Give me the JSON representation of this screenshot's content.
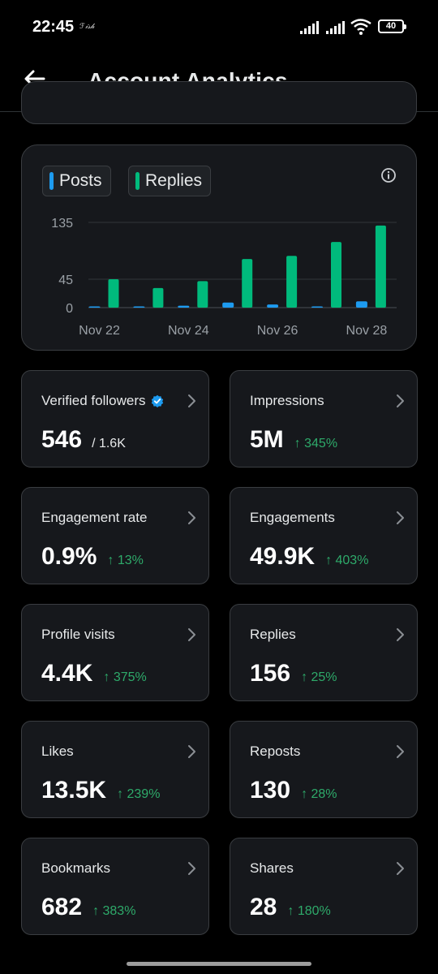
{
  "status_bar": {
    "time": "22:45",
    "carrier_label": "ℱ𝒾𝓈𝒽",
    "battery": "40",
    "icons": [
      "signal-icon",
      "signal-icon",
      "wifi-icon",
      "battery-icon"
    ]
  },
  "header": {
    "title": "Account Analytics",
    "back_icon": "arrow-left-icon"
  },
  "chart": {
    "legend": [
      {
        "label": "Posts",
        "color": "#1d9bf0"
      },
      {
        "label": "Replies",
        "color": "#00ba7c"
      }
    ],
    "info_icon": "info-icon"
  },
  "chart_data": {
    "type": "bar",
    "categories": [
      "Nov 22",
      "Nov 23",
      "Nov 24",
      "Nov 25",
      "Nov 26",
      "Nov 27",
      "Nov 28"
    ],
    "x_tick_labels": [
      "Nov 22",
      "Nov 24",
      "Nov 26",
      "Nov 28"
    ],
    "y_ticks": [
      0,
      45,
      135
    ],
    "ylim": [
      0,
      135
    ],
    "grid": true,
    "series": [
      {
        "name": "Posts",
        "color": "#1d9bf0",
        "values": [
          1,
          0,
          3,
          8,
          5,
          2,
          10
        ]
      },
      {
        "name": "Replies",
        "color": "#00ba7c",
        "values": [
          45,
          31,
          42,
          77,
          82,
          104,
          130
        ]
      }
    ]
  },
  "tiles": [
    {
      "label": "Verified followers",
      "value": "546",
      "sub": "/ 1.6K",
      "change": "",
      "verified": true
    },
    {
      "label": "Impressions",
      "value": "5M",
      "sub": "",
      "change": "↑ 345%"
    },
    {
      "label": "Engagement rate",
      "value": "0.9%",
      "sub": "",
      "change": "↑ 13%"
    },
    {
      "label": "Engagements",
      "value": "49.9K",
      "sub": "",
      "change": "↑ 403%"
    },
    {
      "label": "Profile visits",
      "value": "4.4K",
      "sub": "",
      "change": "↑ 375%"
    },
    {
      "label": "Replies",
      "value": "156",
      "sub": "",
      "change": "↑ 25%"
    },
    {
      "label": "Likes",
      "value": "13.5K",
      "sub": "",
      "change": "↑ 239%"
    },
    {
      "label": "Reposts",
      "value": "130",
      "sub": "",
      "change": "↑ 28%"
    },
    {
      "label": "Bookmarks",
      "value": "682",
      "sub": "",
      "change": "↑ 383%"
    },
    {
      "label": "Shares",
      "value": "28",
      "sub": "",
      "change": "↑ 180%"
    }
  ],
  "colors": {
    "accent_green": "#00ba7c",
    "accent_blue": "#1d9bf0",
    "change_green": "#2eaa6a",
    "card_bg": "#16181c",
    "card_border": "#3a3d41"
  }
}
